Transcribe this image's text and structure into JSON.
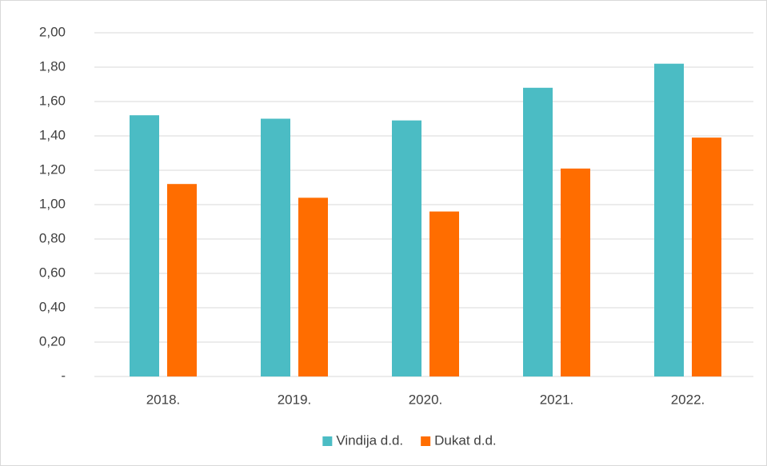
{
  "chart_data": {
    "type": "bar",
    "categories": [
      "2018.",
      "2019.",
      "2020.",
      "2021.",
      "2022."
    ],
    "series": [
      {
        "name": "Vindija d.d.",
        "color": "#4bbcc4",
        "values": [
          1.52,
          1.5,
          1.49,
          1.68,
          1.82
        ]
      },
      {
        "name": "Dukat d.d.",
        "color": "#ff6d00",
        "values": [
          1.12,
          1.04,
          0.96,
          1.21,
          1.39
        ]
      }
    ],
    "ylim": [
      0,
      2
    ],
    "yticks": [
      {
        "value": 0,
        "label": "-"
      },
      {
        "value": 0.2,
        "label": "0,20"
      },
      {
        "value": 0.4,
        "label": "0,40"
      },
      {
        "value": 0.6,
        "label": "0,60"
      },
      {
        "value": 0.8,
        "label": "0,80"
      },
      {
        "value": 1.0,
        "label": "1,00"
      },
      {
        "value": 1.2,
        "label": "1,20"
      },
      {
        "value": 1.4,
        "label": "1,40"
      },
      {
        "value": 1.6,
        "label": "1,60"
      },
      {
        "value": 1.8,
        "label": "1,80"
      },
      {
        "value": 2.0,
        "label": "2,00"
      }
    ],
    "grid": true,
    "legend": "bottom"
  }
}
